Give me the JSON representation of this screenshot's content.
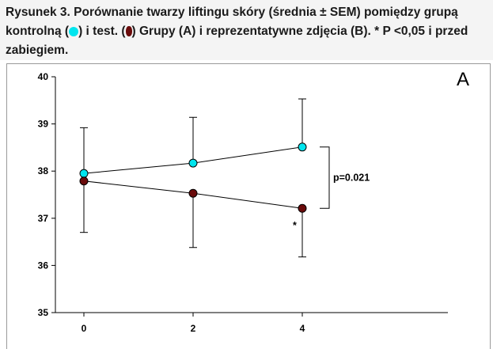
{
  "caption": {
    "part1": "Rysunek 3. ",
    "part2": "Porównanie twarzy liftingu skóry (średnia ± SEM) pomiędzy grupą kontrolną (",
    "part3": ") i test. (",
    "part4": ") Grupy (A) i reprezentatywne zdjęcia (B). * P <0,05 i przed zabiegiem."
  },
  "chart_data": {
    "type": "line",
    "panel_label": "A",
    "x": [
      0,
      2,
      4
    ],
    "xticks": [
      "0",
      "2",
      "4"
    ],
    "ylim": [
      35,
      40
    ],
    "yticks": [
      "35",
      "36",
      "37",
      "38",
      "39",
      "40"
    ],
    "xlabel": "",
    "ylabel": "",
    "series": [
      {
        "values": [
          37.95,
          38.17,
          38.51
        ],
        "errors": [
          0.97,
          0.97,
          1.02
        ],
        "color": "#00e5ee"
      },
      {
        "values": [
          37.79,
          37.53,
          37.21
        ],
        "errors": [
          1.09,
          1.15,
          1.03
        ],
        "color": "#6a0b0b"
      }
    ],
    "annotations": [
      {
        "text": "p=0.021",
        "x": 4,
        "y": 37.86
      },
      {
        "text": "*",
        "x": 4,
        "y": 36.9
      }
    ]
  }
}
